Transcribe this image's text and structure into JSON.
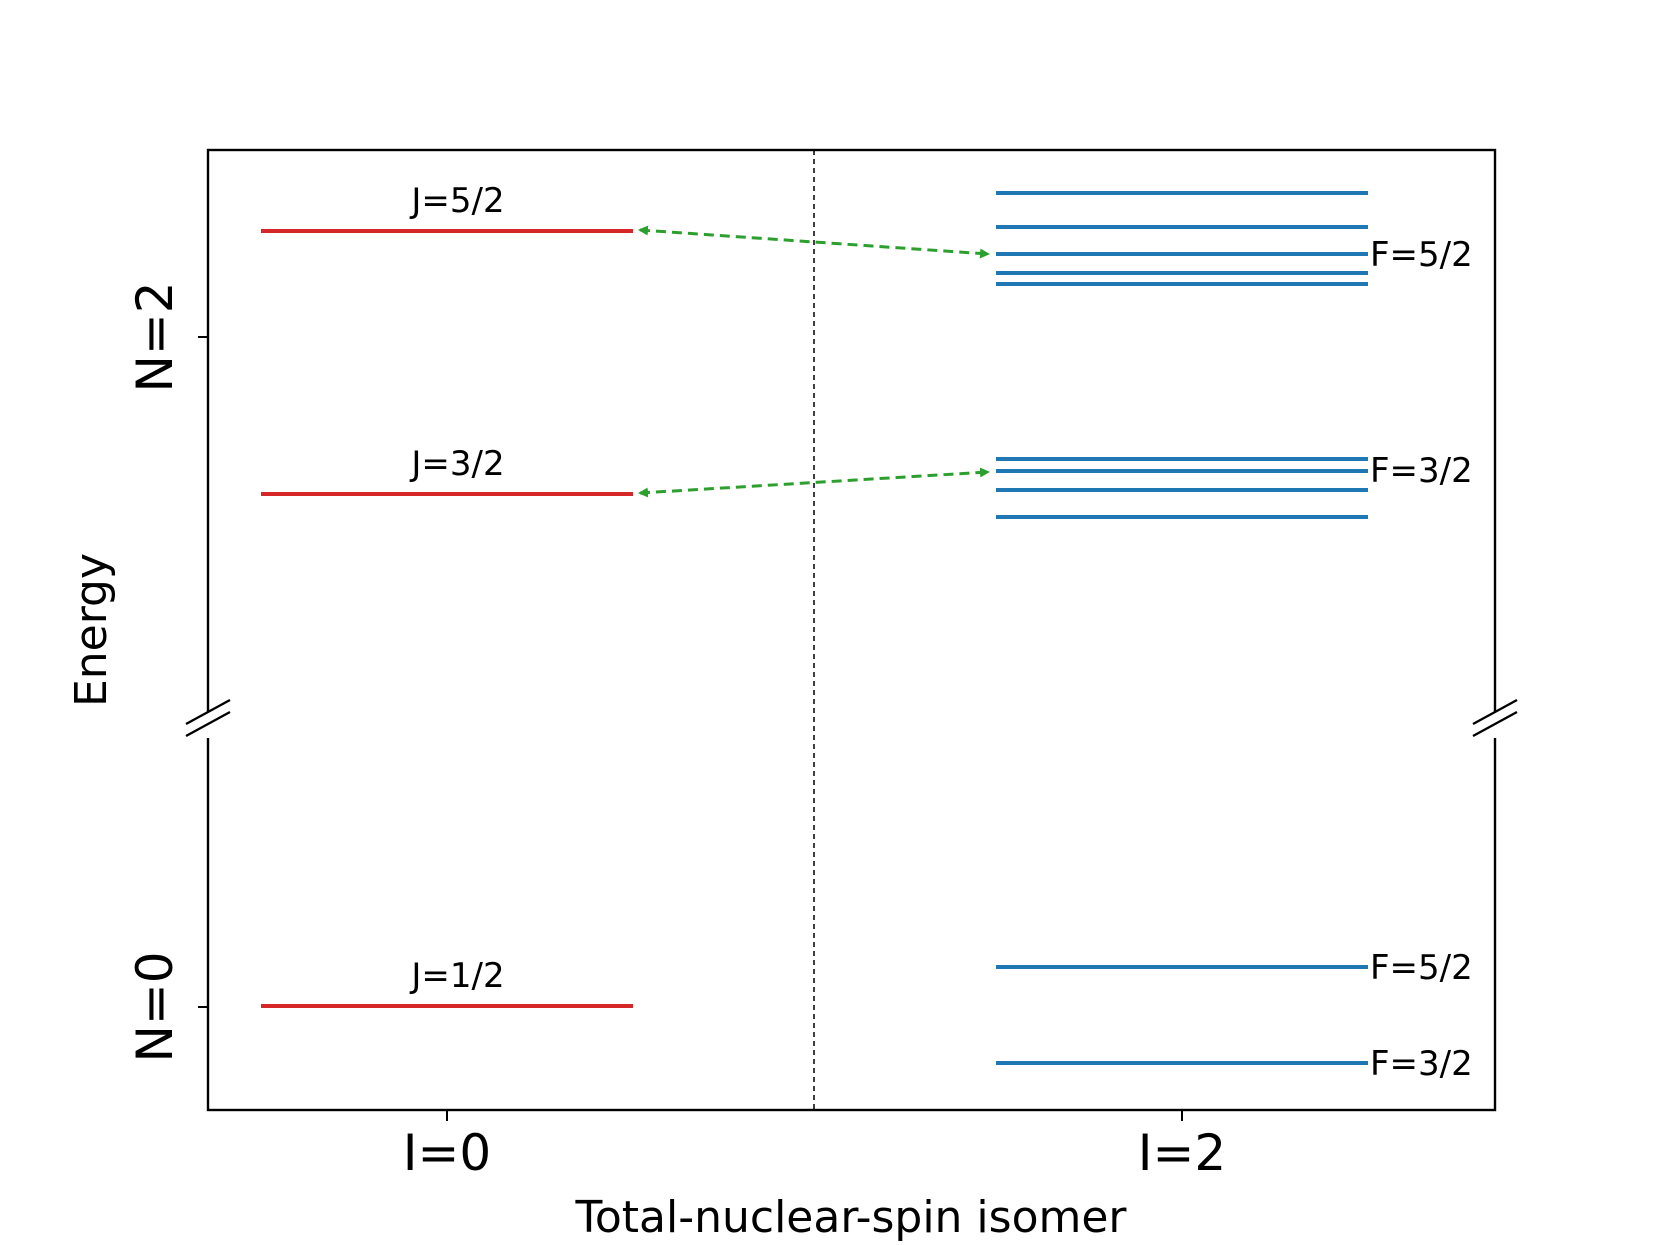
{
  "colors": {
    "i0_levels": "#d62728",
    "i2_levels": "#1f77b4",
    "transition_arrows": "#2ca02c",
    "axes": "#000000"
  },
  "axes": {
    "xlabel": "Total-nuclear-spin isomer",
    "ylabel": "Energy",
    "x_tick_labels": [
      "I=0",
      "I=2"
    ],
    "y_tick_labels": [
      "N=0",
      "N=2"
    ],
    "y_axis_break": true,
    "center_divider_dashed": true
  },
  "i0_levels": [
    {
      "label": "J=5/2",
      "rotational_level": "N=2"
    },
    {
      "label": "J=3/2",
      "rotational_level": "N=2"
    },
    {
      "label": "J=1/2",
      "rotational_level": "N=0"
    }
  ],
  "i2_levels": {
    "n2_upper_group_label": "F=5/2",
    "n2_lower_group_label": "F=3/2",
    "n2_upper_group_line_count": 5,
    "n2_lower_group_line_count": 4,
    "n0_upper_label": "F=5/2",
    "n0_lower_label": "F=3/2"
  },
  "transitions": [
    {
      "from": "J=5/2",
      "to": "F=5/2",
      "style": "dashed double-headed arrow"
    },
    {
      "from": "J=3/2",
      "to": "F=3/2",
      "style": "dashed double-headed arrow"
    }
  ]
}
